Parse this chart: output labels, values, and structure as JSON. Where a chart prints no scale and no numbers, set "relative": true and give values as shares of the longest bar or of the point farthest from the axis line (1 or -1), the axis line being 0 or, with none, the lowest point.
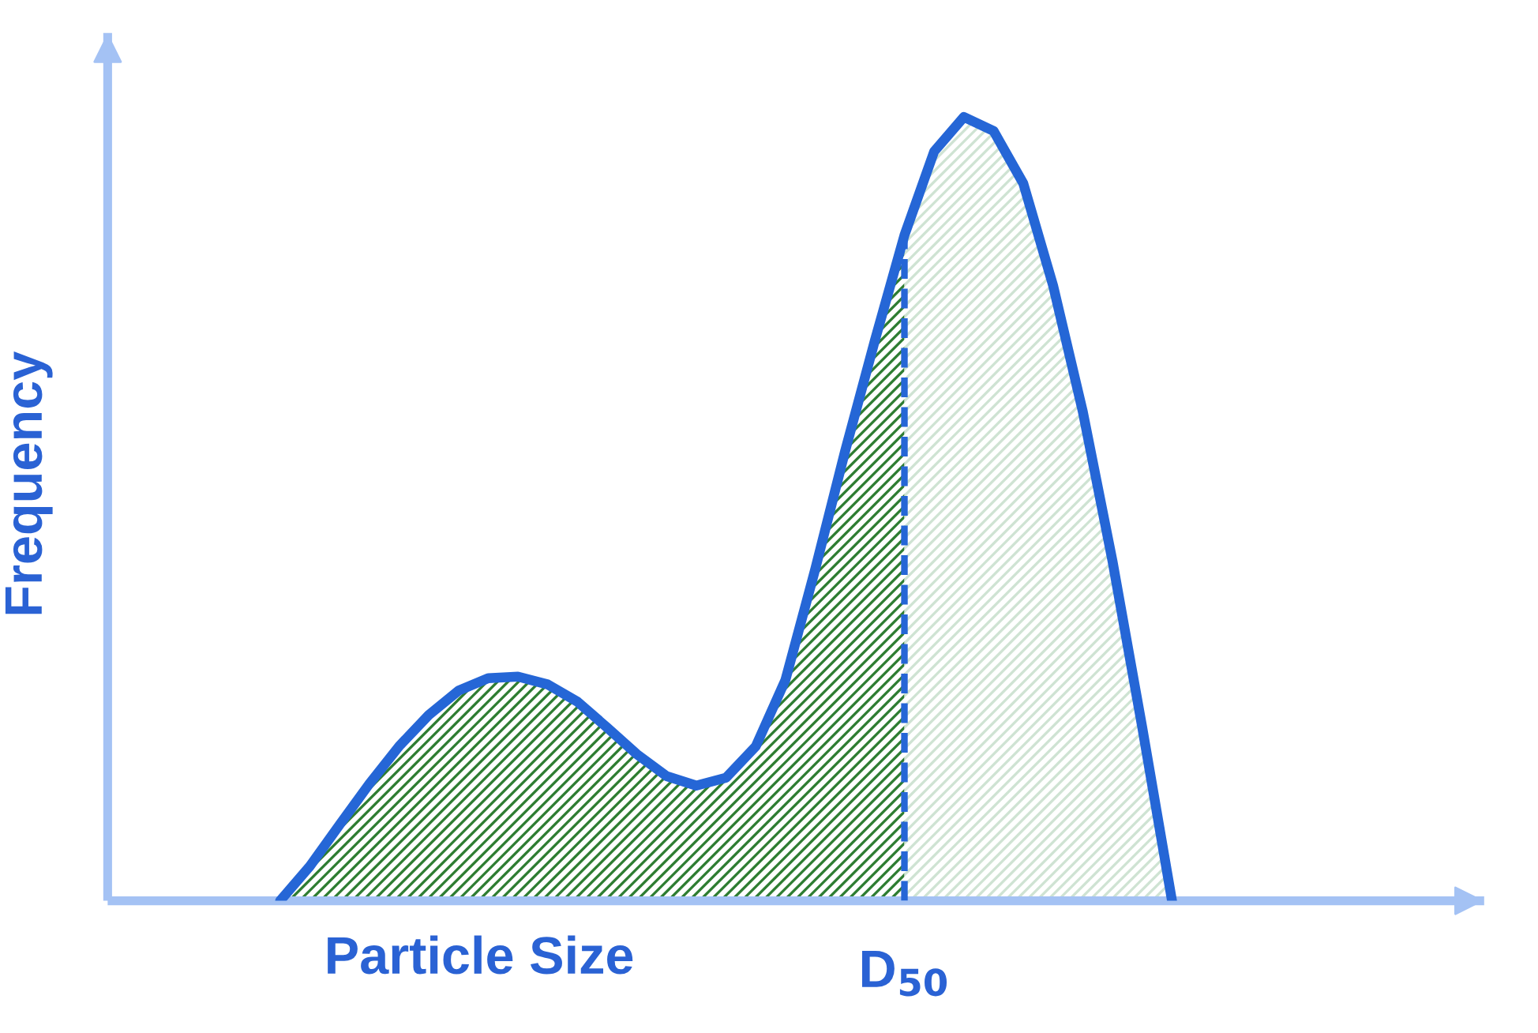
{
  "chart_data": {
    "type": "area",
    "relative": true,
    "xlabel": "Particle Size",
    "ylabel": "Frequency",
    "categories": [
      null,
      null,
      null,
      null,
      null,
      null,
      null,
      null,
      null,
      null,
      null,
      null,
      null,
      null,
      null,
      null,
      null,
      null,
      null,
      null,
      null,
      null,
      null,
      null,
      null,
      null,
      null,
      null,
      null,
      null,
      null,
      null,
      null,
      null,
      null,
      null,
      null,
      null,
      null,
      null,
      null,
      null,
      null,
      null
    ],
    "annotations": [
      "D$_{50}$"
    ],
    "series": [
      {
        "type": "line",
        "color": "#2566d6",
        "values": [
          null,
          null,
          null,
          0,
          0.044,
          0.097,
          0.149,
          0.197,
          0.237,
          0.268,
          0.284,
          0.286,
          0.276,
          0.254,
          0.221,
          0.187,
          0.159,
          0.147,
          0.157,
          0.197,
          0.282,
          0.423,
          0.573,
          0.714,
          0.849,
          0.956,
          1,
          0.982,
          0.915,
          0.785,
          0.624,
          0.433,
          0.221,
          0,
          null,
          null,
          null,
          null,
          null,
          null,
          null,
          null,
          null,
          null
        ]
      },
      {
        "color": "#2e7d32",
        "values": [
          null,
          null,
          null,
          0,
          0.044,
          0.097,
          0.149,
          0.197,
          0.237,
          0.268,
          0.284,
          0.286,
          0.276,
          0.254,
          0.221,
          0.187,
          0.159,
          0.147,
          0.157,
          0.197,
          0.282,
          0.423,
          0.573,
          0.714,
          0.849,
          null,
          null,
          null,
          null,
          null,
          null,
          null,
          null,
          null,
          null,
          null,
          null,
          null,
          null,
          null,
          null,
          null,
          null,
          null
        ]
      },
      {
        "color": "#cfe3d3",
        "values": [
          null,
          null,
          null,
          null,
          null,
          null,
          null,
          null,
          null,
          null,
          null,
          null,
          null,
          null,
          null,
          null,
          null,
          null,
          null,
          null,
          null,
          null,
          null,
          null,
          0.849,
          0.956,
          1,
          0.982,
          0.915,
          0.785,
          0.624,
          0.433,
          0.221,
          0,
          null,
          null,
          null,
          null,
          null,
          null,
          null,
          null,
          null,
          null
        ]
      }
    ]
  }
}
